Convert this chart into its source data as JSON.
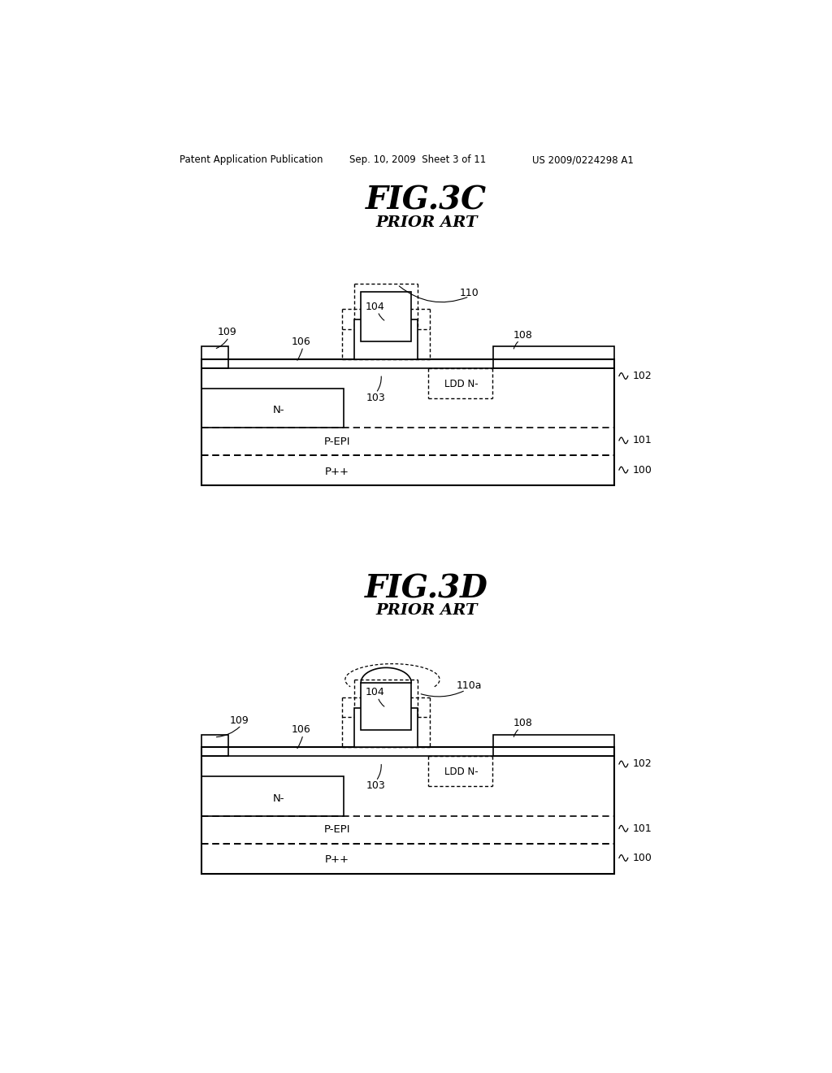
{
  "bg_color": "#ffffff",
  "page_header_left": "Patent Application Publication",
  "page_header_mid": "Sep. 10, 2009  Sheet 3 of 11",
  "page_header_right": "US 2009/0224298 A1",
  "fig3c_title": "FIG.3C",
  "fig3c_subtitle": "PRIOR ART",
  "fig3d_title": "FIG.3D",
  "fig3d_subtitle": "PRIOR ART"
}
